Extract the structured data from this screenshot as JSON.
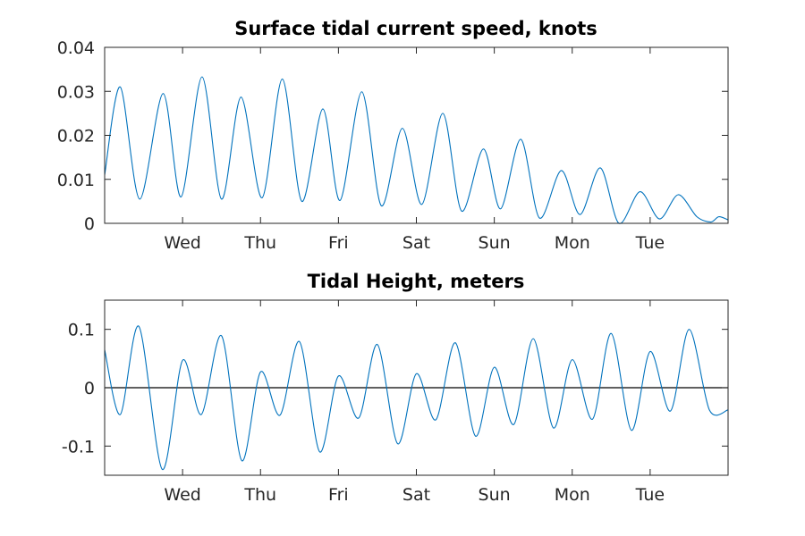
{
  "chart_data": [
    {
      "type": "line",
      "title": "Surface tidal current speed, knots",
      "xlabel": "",
      "ylabel": "",
      "xlim": [
        0,
        8.0
      ],
      "ylim": [
        0,
        0.04
      ],
      "xticks": [
        1,
        2,
        3,
        4,
        5,
        6,
        7
      ],
      "xtick_labels": [
        "Wed",
        "Thu",
        "Fri",
        "Sat",
        "Sun",
        "Mon",
        "Tue"
      ],
      "yticks": [
        0,
        0.01,
        0.02,
        0.03,
        0.04
      ],
      "ytick_labels": [
        "0",
        "0.01",
        "0.02",
        "0.03",
        "0.04"
      ],
      "grid": false,
      "legend": "none",
      "color": "#0072BD",
      "series": [
        {
          "x": [
            0.0,
            0.2,
            0.45,
            0.75,
            0.98,
            1.25,
            1.5,
            1.75,
            2.02,
            2.28,
            2.53,
            2.8,
            3.02,
            3.3,
            3.55,
            3.82,
            4.07,
            4.34,
            4.58,
            4.86,
            5.08,
            5.34,
            5.58,
            5.86,
            6.1,
            6.36,
            6.6,
            6.87,
            7.12,
            7.36,
            7.6,
            7.78,
            7.88,
            8.0
          ],
          "y": [
            0.011,
            0.031,
            0.0055,
            0.0295,
            0.006,
            0.0333,
            0.0055,
            0.0287,
            0.0058,
            0.0328,
            0.005,
            0.026,
            0.0052,
            0.0299,
            0.004,
            0.0216,
            0.0043,
            0.025,
            0.0028,
            0.0169,
            0.0033,
            0.0191,
            0.0012,
            0.012,
            0.002,
            0.0126,
            0.0,
            0.0072,
            0.001,
            0.0065,
            0.0015,
            0.0003,
            0.0015,
            0.0008
          ]
        }
      ]
    },
    {
      "type": "line",
      "title": "Tidal Height, meters",
      "xlabel": "",
      "ylabel": "",
      "xlim": [
        0,
        8.0
      ],
      "ylim": [
        -0.15,
        0.15
      ],
      "xticks": [
        1,
        2,
        3,
        4,
        5,
        6,
        7
      ],
      "xtick_labels": [
        "Wed",
        "Thu",
        "Fri",
        "Sat",
        "Sun",
        "Mon",
        "Tue"
      ],
      "yticks": [
        -0.1,
        0,
        0.1
      ],
      "ytick_labels": [
        "-0.1",
        "0",
        "0.1"
      ],
      "zero_line": true,
      "grid": false,
      "legend": "none",
      "color": "#0072BD",
      "series": [
        {
          "x": [
            0.0,
            0.2,
            0.44,
            0.74,
            1.0,
            1.24,
            1.5,
            1.76,
            2.0,
            2.25,
            2.5,
            2.76,
            3.0,
            3.26,
            3.5,
            3.76,
            4.0,
            4.25,
            4.5,
            4.76,
            5.0,
            5.25,
            5.5,
            5.76,
            6.0,
            6.26,
            6.5,
            6.76,
            7.0,
            7.26,
            7.5,
            7.76,
            8.0
          ],
          "y": [
            0.065,
            -0.046,
            0.105,
            -0.14,
            0.047,
            -0.046,
            0.089,
            -0.125,
            0.027,
            -0.047,
            0.079,
            -0.11,
            0.02,
            -0.052,
            0.074,
            -0.096,
            0.024,
            -0.055,
            0.077,
            -0.083,
            0.035,
            -0.063,
            0.084,
            -0.069,
            0.048,
            -0.054,
            0.093,
            -0.073,
            0.062,
            -0.04,
            0.1,
            -0.038,
            -0.038
          ]
        }
      ]
    }
  ]
}
